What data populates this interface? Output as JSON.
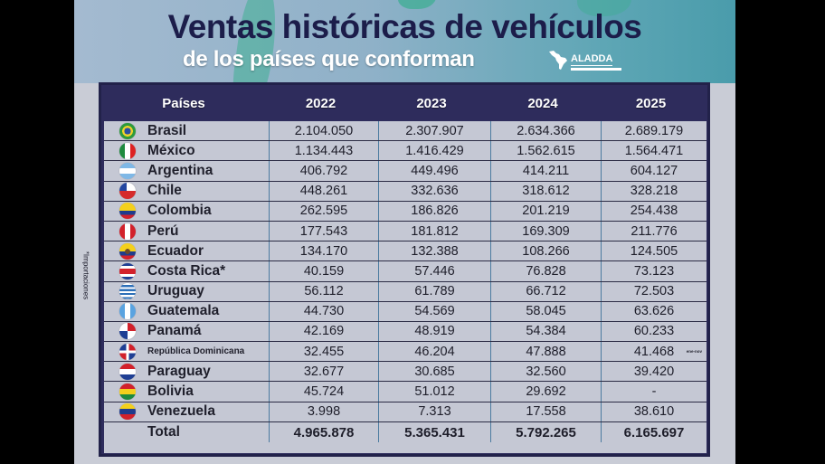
{
  "header": {
    "title": "Ventas históricas de vehículos",
    "subtitle": "de los países que conforman",
    "logo_text": "ALADDA"
  },
  "side_note": "*Importaciones",
  "table": {
    "columns": [
      "Países",
      "2022",
      "2023",
      "2024",
      "2025"
    ],
    "rows": [
      {
        "country": "Brasil",
        "flag": "brazil-flag",
        "values": [
          "2.104.050",
          "2.307.907",
          "2.634.366",
          "2.689.179"
        ]
      },
      {
        "country": "México",
        "flag": "mexico-flag",
        "values": [
          "1.134.443",
          "1.416.429",
          "1.562.615",
          "1.564.471"
        ]
      },
      {
        "country": "Argentina",
        "flag": "argentina-flag",
        "values": [
          "406.792",
          "449.496",
          "414.211",
          "604.127"
        ]
      },
      {
        "country": "Chile",
        "flag": "chile-flag",
        "values": [
          "448.261",
          "332.636",
          "318.612",
          "328.218"
        ]
      },
      {
        "country": "Colombia",
        "flag": "colombia-flag",
        "values": [
          "262.595",
          "186.826",
          "201.219",
          "254.438"
        ]
      },
      {
        "country": "Perú",
        "flag": "peru-flag",
        "values": [
          "177.543",
          "181.812",
          "169.309",
          "211.776"
        ]
      },
      {
        "country": "Ecuador",
        "flag": "ecuador-flag",
        "values": [
          "134.170",
          "132.388",
          "108.266",
          "124.505"
        ]
      },
      {
        "country": "Costa Rica*",
        "flag": "costa-rica-flag",
        "values": [
          "40.159",
          "57.446",
          "76.828",
          "73.123"
        ]
      },
      {
        "country": "Uruguay",
        "flag": "uruguay-flag",
        "values": [
          "56.112",
          "61.789",
          "66.712",
          "72.503"
        ]
      },
      {
        "country": "Guatemala",
        "flag": "guatemala-flag",
        "values": [
          "44.730",
          "54.569",
          "58.045",
          "63.626"
        ]
      },
      {
        "country": "Panamá",
        "flag": "panama-flag",
        "values": [
          "42.169",
          "48.919",
          "54.384",
          "60.233"
        ]
      },
      {
        "country": "República Dominicana",
        "flag": "dominican-republic-flag",
        "values": [
          "32.455",
          "46.204",
          "47.888",
          "41.468"
        ],
        "note": "ene-nov"
      },
      {
        "country": "Paraguay",
        "flag": "paraguay-flag",
        "values": [
          "32.677",
          "30.685",
          "32.560",
          "39.420"
        ]
      },
      {
        "country": "Bolivia",
        "flag": "bolivia-flag",
        "values": [
          "45.724",
          "51.012",
          "29.692",
          "-"
        ]
      },
      {
        "country": "Venezuela",
        "flag": "venezuela-flag",
        "values": [
          "3.998",
          "7.313",
          "17.558",
          "38.610"
        ]
      }
    ],
    "total": {
      "label": "Total",
      "values": [
        "4.965.878",
        "5.365.431",
        "5.792.265",
        "6.165.697"
      ]
    }
  },
  "colors": {
    "header_bg": "#2e2c5c",
    "title": "#1c1d4a",
    "body_bg": "#c5c8d4",
    "banner_right": "#4a9cab",
    "banner_left": "#a4bad0"
  }
}
